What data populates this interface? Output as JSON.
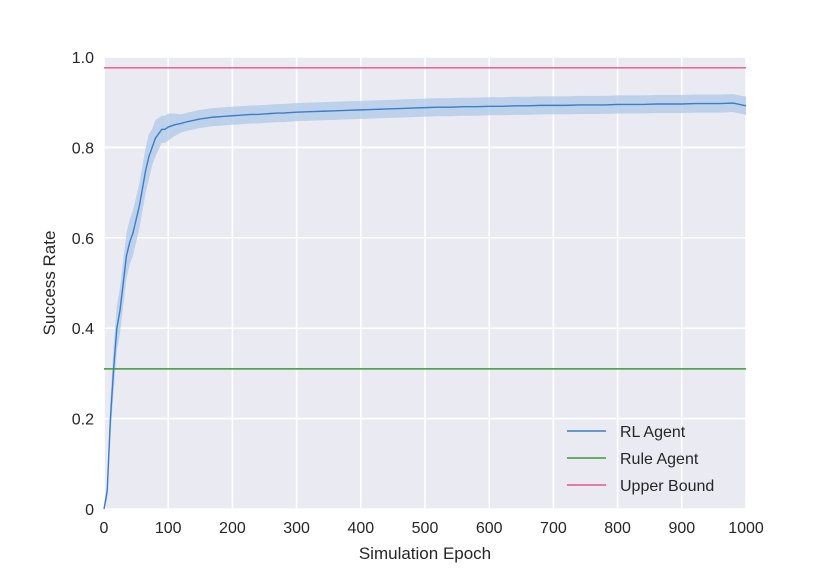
{
  "chart_data": {
    "type": "line",
    "title": "",
    "xlabel": "Simulation Epoch",
    "ylabel": "Success Rate",
    "xlim": [
      0,
      1000
    ],
    "ylim": [
      0,
      1.0
    ],
    "x_ticks": [
      0,
      100,
      200,
      300,
      400,
      500,
      600,
      700,
      800,
      900,
      1000
    ],
    "y_ticks": [
      0,
      0.2,
      0.4,
      0.6,
      0.8,
      1.0
    ],
    "x_tick_labels": [
      "0",
      "100",
      "200",
      "300",
      "400",
      "500",
      "600",
      "700",
      "800",
      "900",
      "1000"
    ],
    "y_tick_labels": [
      "0",
      "0.2",
      "0.4",
      "0.6",
      "0.8",
      "1.0"
    ],
    "grid": true,
    "background": "#eaeaf2",
    "legend_position": "lower-right",
    "series": [
      {
        "name": "RL Agent",
        "color": "#3a7dc9",
        "band_color": "#aec8e8",
        "x": [
          0,
          5,
          10,
          15,
          20,
          25,
          30,
          35,
          40,
          45,
          50,
          55,
          60,
          65,
          70,
          75,
          80,
          85,
          90,
          95,
          100,
          110,
          120,
          130,
          140,
          150,
          160,
          170,
          180,
          190,
          200,
          210,
          220,
          230,
          240,
          250,
          260,
          270,
          280,
          290,
          300,
          320,
          340,
          360,
          380,
          400,
          420,
          440,
          460,
          480,
          500,
          520,
          540,
          560,
          580,
          600,
          620,
          640,
          660,
          680,
          700,
          720,
          740,
          760,
          780,
          800,
          820,
          840,
          860,
          880,
          900,
          920,
          940,
          960,
          980,
          1000
        ],
        "values": [
          0.0,
          0.04,
          0.2,
          0.31,
          0.4,
          0.44,
          0.5,
          0.56,
          0.59,
          0.61,
          0.64,
          0.67,
          0.71,
          0.75,
          0.78,
          0.8,
          0.82,
          0.83,
          0.84,
          0.84,
          0.845,
          0.85,
          0.853,
          0.857,
          0.86,
          0.863,
          0.865,
          0.867,
          0.868,
          0.869,
          0.87,
          0.871,
          0.872,
          0.873,
          0.873,
          0.874,
          0.875,
          0.876,
          0.876,
          0.877,
          0.878,
          0.879,
          0.88,
          0.881,
          0.882,
          0.883,
          0.884,
          0.885,
          0.886,
          0.887,
          0.888,
          0.889,
          0.889,
          0.89,
          0.89,
          0.891,
          0.891,
          0.892,
          0.892,
          0.893,
          0.893,
          0.893,
          0.894,
          0.894,
          0.894,
          0.895,
          0.895,
          0.895,
          0.896,
          0.896,
          0.896,
          0.897,
          0.897,
          0.897,
          0.898,
          0.892
        ],
        "band": [
          0.0,
          0.02,
          0.04,
          0.05,
          0.05,
          0.05,
          0.05,
          0.05,
          0.05,
          0.05,
          0.05,
          0.05,
          0.05,
          0.05,
          0.05,
          0.04,
          0.04,
          0.035,
          0.03,
          0.03,
          0.03,
          0.025,
          0.02,
          0.02,
          0.02,
          0.02,
          0.02,
          0.02,
          0.02,
          0.02,
          0.02,
          0.02,
          0.02,
          0.02,
          0.02,
          0.02,
          0.02,
          0.02,
          0.02,
          0.02,
          0.02,
          0.02,
          0.02,
          0.02,
          0.02,
          0.02,
          0.02,
          0.02,
          0.02,
          0.02,
          0.02,
          0.02,
          0.02,
          0.02,
          0.02,
          0.02,
          0.02,
          0.02,
          0.02,
          0.02,
          0.02,
          0.02,
          0.02,
          0.02,
          0.02,
          0.02,
          0.02,
          0.02,
          0.02,
          0.02,
          0.02,
          0.02,
          0.02,
          0.02,
          0.02,
          0.02
        ]
      },
      {
        "name": "Rule Agent",
        "color": "#3a9a35",
        "x": [
          0,
          1000
        ],
        "values": [
          0.31,
          0.31
        ]
      },
      {
        "name": "Upper Bound",
        "color": "#e8558a",
        "x": [
          0,
          1000
        ],
        "values": [
          0.976,
          0.976
        ]
      }
    ]
  }
}
